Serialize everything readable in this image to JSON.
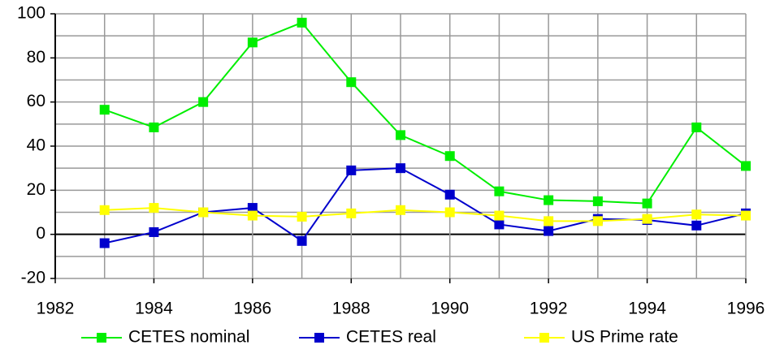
{
  "chart_data": {
    "type": "line",
    "x": [
      1983,
      1984,
      1985,
      1986,
      1987,
      1988,
      1989,
      1990,
      1991,
      1992,
      1993,
      1994,
      1995,
      1996
    ],
    "series": [
      {
        "name": "CETES nominal",
        "color": "#00ee00",
        "values": [
          56.5,
          48.5,
          60,
          87,
          96,
          69,
          45,
          35.5,
          19.5,
          15.5,
          15,
          14,
          48.5,
          31
        ]
      },
      {
        "name": "CETES real",
        "color": "#0000cc",
        "values": [
          -4,
          1,
          10,
          12,
          -3,
          29,
          30,
          18,
          4.5,
          1.5,
          7,
          6.5,
          4,
          9.5
        ]
      },
      {
        "name": "US Prime rate",
        "color": "#ffff00",
        "values": [
          11,
          12,
          10,
          8.5,
          8,
          9.5,
          11,
          10,
          8.5,
          6,
          6,
          7,
          9,
          8.5
        ]
      }
    ],
    "xlim": [
      1982,
      1996
    ],
    "xticks": [
      1982,
      1984,
      1986,
      1988,
      1990,
      1992,
      1994,
      1996
    ],
    "minor_xticks": [
      1983,
      1985,
      1987,
      1989,
      1991,
      1993,
      1995
    ],
    "ylim": [
      -20,
      100
    ],
    "yticks": [
      -20,
      0,
      20,
      40,
      60,
      80,
      100
    ],
    "minor_yticks": [
      -10,
      10,
      30,
      50,
      70,
      90
    ],
    "grid": true,
    "legend": "bottom"
  }
}
